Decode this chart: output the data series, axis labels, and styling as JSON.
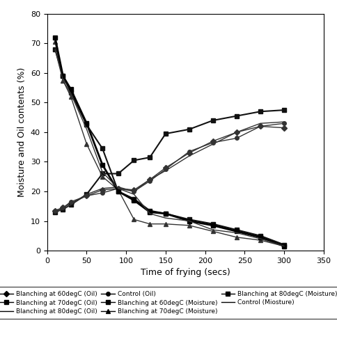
{
  "title": "",
  "xlabel": "Time of frying (secs)",
  "ylabel": "Moisture and Oil contents (%)",
  "xlim": [
    0,
    350
  ],
  "ylim": [
    0,
    80
  ],
  "xticks": [
    0,
    50,
    100,
    150,
    200,
    250,
    300,
    350
  ],
  "yticks": [
    0,
    10,
    20,
    30,
    40,
    50,
    60,
    70,
    80
  ],
  "series": [
    {
      "label": "Blanching at 60degC (Oil)",
      "marker": "D",
      "markersize": 4,
      "color": "#333333",
      "linewidth": 1.0,
      "x": [
        10,
        20,
        30,
        50,
        70,
        90,
        110,
        130,
        150,
        180,
        210,
        240,
        270,
        300
      ],
      "y": [
        13.5,
        14.5,
        16.0,
        18.5,
        20.5,
        21.0,
        20.5,
        24.0,
        28.0,
        33.0,
        37.0,
        40.0,
        42.0,
        41.5
      ]
    },
    {
      "label": "Blanching at 70degC (Oil)",
      "marker": "s",
      "markersize": 5,
      "color": "#111111",
      "linewidth": 1.5,
      "x": [
        10,
        20,
        30,
        50,
        70,
        90,
        110,
        130,
        150,
        180,
        210,
        240,
        270,
        300
      ],
      "y": [
        13.0,
        14.0,
        15.5,
        19.0,
        26.0,
        26.0,
        30.5,
        31.5,
        39.5,
        41.0,
        44.0,
        45.5,
        47.0,
        47.5
      ]
    },
    {
      "label": "Blanching at 80degC (Oil)",
      "marker": "None",
      "markersize": 0,
      "color": "#333333",
      "linewidth": 1.0,
      "x": [
        10,
        20,
        30,
        50,
        70,
        90,
        110,
        130,
        150,
        180,
        210,
        240,
        270,
        300
      ],
      "y": [
        13.0,
        14.0,
        15.5,
        19.0,
        21.0,
        21.5,
        20.0,
        24.0,
        27.0,
        32.0,
        36.0,
        40.0,
        43.0,
        43.5
      ]
    },
    {
      "label": "Control (Oil)",
      "marker": "o",
      "markersize": 4,
      "color": "#333333",
      "linewidth": 1.0,
      "x": [
        10,
        20,
        30,
        50,
        70,
        90,
        110,
        130,
        150,
        180,
        210,
        240,
        270,
        300
      ],
      "y": [
        13.5,
        14.5,
        16.5,
        18.5,
        19.5,
        21.0,
        20.0,
        23.5,
        27.5,
        33.5,
        36.5,
        38.0,
        42.0,
        43.0
      ]
    },
    {
      "label": "Blanching at 60degC (Moisture)",
      "marker": "s",
      "markersize": 5,
      "color": "#111111",
      "linewidth": 1.5,
      "x": [
        10,
        20,
        30,
        50,
        70,
        90,
        110,
        130,
        150,
        180,
        210,
        240,
        270,
        300
      ],
      "y": [
        68.0,
        59.0,
        53.5,
        42.5,
        34.5,
        20.0,
        17.5,
        13.5,
        12.5,
        10.5,
        9.0,
        7.0,
        5.0,
        2.0
      ]
    },
    {
      "label": "Blanching at 70degC (Moisture)",
      "marker": "^",
      "markersize": 5,
      "color": "#333333",
      "linewidth": 1.0,
      "x": [
        10,
        20,
        30,
        50,
        70,
        90,
        110,
        130,
        150,
        180,
        210,
        240,
        270,
        300
      ],
      "y": [
        70.5,
        57.5,
        52.0,
        36.0,
        25.0,
        20.5,
        10.5,
        9.0,
        9.0,
        8.5,
        6.5,
        4.5,
        3.5,
        1.5
      ]
    },
    {
      "label": "Blanching at 80degC (Moisture)",
      "marker": "s",
      "markersize": 5,
      "color": "#000000",
      "linewidth": 2.0,
      "x": [
        10,
        20,
        30,
        50,
        70,
        90,
        110,
        130,
        150,
        180,
        210,
        240,
        270,
        300
      ],
      "y": [
        72.0,
        59.0,
        54.5,
        43.0,
        29.0,
        20.0,
        17.0,
        13.0,
        12.5,
        10.0,
        8.5,
        6.5,
        4.5,
        1.5
      ]
    },
    {
      "label": "Control (Miosture)",
      "marker": "None",
      "markersize": 0,
      "color": "#333333",
      "linewidth": 1.0,
      "x": [
        10,
        20,
        30,
        50,
        70,
        90,
        110,
        130,
        150,
        180,
        210,
        240,
        270,
        300
      ],
      "y": [
        68.0,
        57.5,
        53.0,
        41.0,
        26.5,
        21.0,
        19.0,
        12.5,
        11.0,
        10.0,
        7.0,
        6.0,
        4.0,
        1.5
      ]
    }
  ],
  "legend_order": [
    {
      "label": "Blanching at 60degC (Oil)",
      "marker": "D"
    },
    {
      "label": "Blanching at 70degC (Oil)",
      "marker": "s"
    },
    {
      "label": "Blanching at 80degC (Oil)",
      "marker": "None"
    },
    {
      "label": "Control (Oil)",
      "marker": "o"
    },
    {
      "label": "Blanching at 60degC (Moisture)",
      "marker": "s"
    },
    {
      "label": "Blanching at 70degC (Moisture)",
      "marker": "^"
    },
    {
      "label": "Blanching at 80degC (Moisture)",
      "marker": "s"
    },
    {
      "label": "Control (Miosture)",
      "marker": "None"
    }
  ],
  "fig_width": 4.84,
  "fig_height": 5.0,
  "dpi": 100
}
